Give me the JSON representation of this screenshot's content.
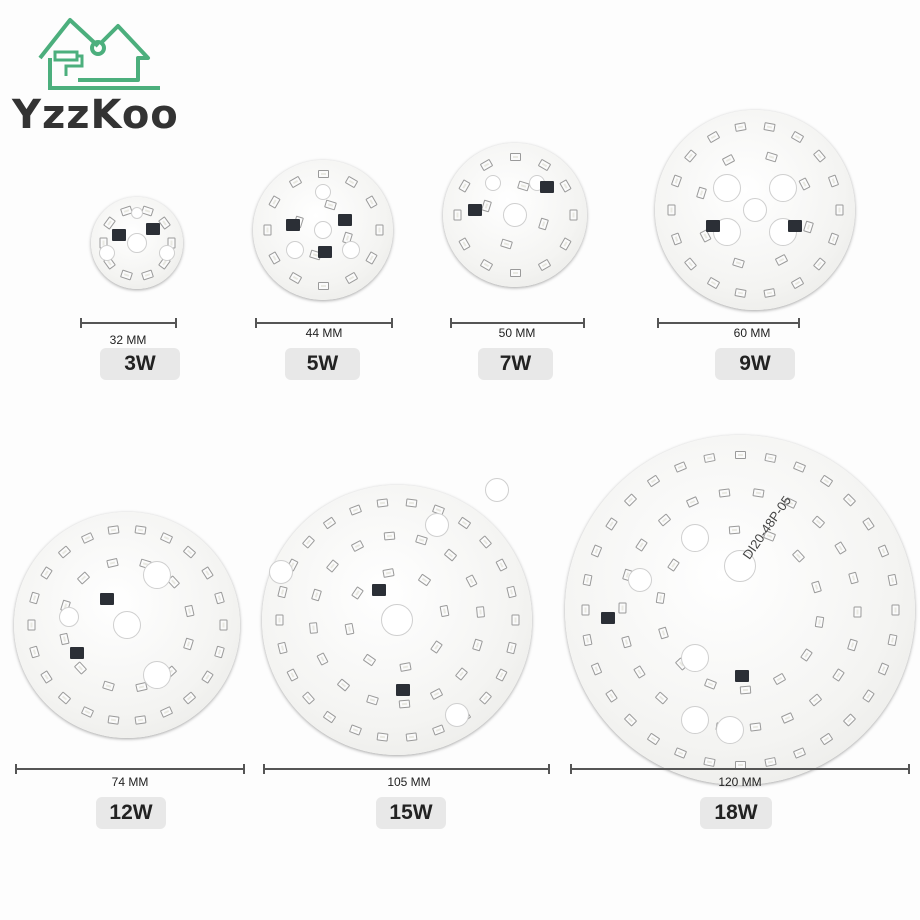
{
  "brand": {
    "name": "YzzKoo",
    "color": "#4caf7d"
  },
  "products": [
    {
      "diameter": "32 MM",
      "power": "3W"
    },
    {
      "diameter": "44 MM",
      "power": "5W"
    },
    {
      "diameter": "50 MM",
      "power": "7W"
    },
    {
      "diameter": "60 MM",
      "power": "9W"
    },
    {
      "diameter": "74 MM",
      "power": "12W"
    },
    {
      "diameter": "105 MM",
      "power": "15W"
    },
    {
      "diameter": "120 MM",
      "power": "18W"
    }
  ],
  "board_text": {
    "large": "DI20-48P-05"
  }
}
